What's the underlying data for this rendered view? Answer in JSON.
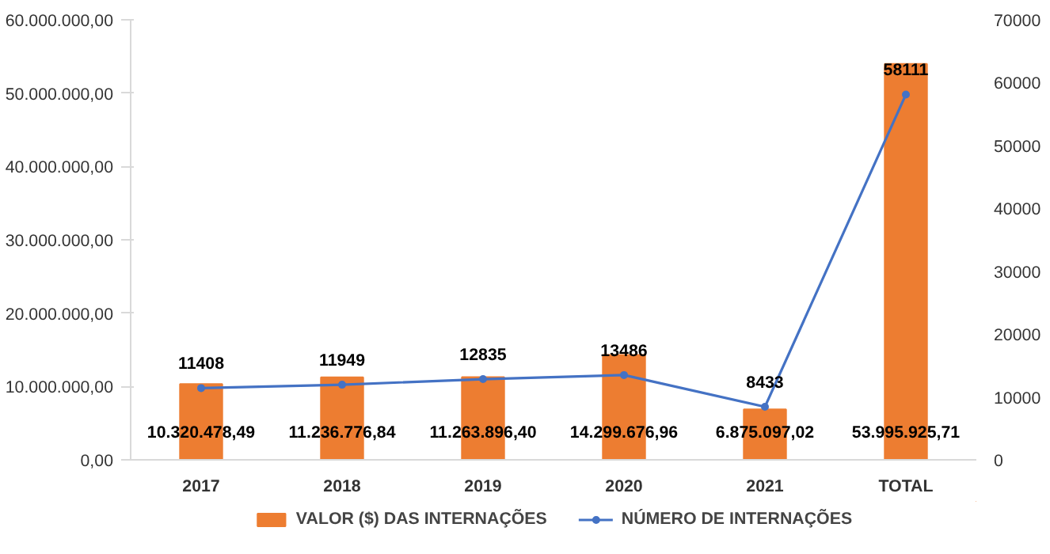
{
  "chart_data": {
    "type": "bar",
    "categories": [
      "2017",
      "2018",
      "2019",
      "2020",
      "2021",
      "TOTAL"
    ],
    "series": [
      {
        "name": "VALOR ($) DAS INTERNAÇÕES",
        "color": "#ed7d31",
        "values": [
          10320478.49,
          11236776.84,
          11263896.4,
          14299676.96,
          6875097.02,
          53995925.71
        ],
        "value_labels": [
          "10.320.478,49",
          "11.236.776,84",
          "11.263.896,40",
          "14.299.676,96",
          "6.875.097,02",
          "53.995.925,71"
        ]
      },
      {
        "name": "NÚMERO DE INTERNAÇÕES",
        "type": "line",
        "axis": "y2",
        "color": "#4472c4",
        "marker": "circle",
        "values": [
          11408,
          11949,
          12835,
          13486,
          8433,
          58111
        ],
        "value_labels": [
          "11408",
          "11949",
          "12835",
          "13486",
          "8433",
          "58111"
        ]
      }
    ],
    "ylim": [
      0,
      60000000
    ],
    "yticks": [
      {
        "value": 0,
        "label": "0,00"
      },
      {
        "value": 10000000,
        "label": "10.000.000,00"
      },
      {
        "value": 20000000,
        "label": "20.000.000,00"
      },
      {
        "value": 30000000,
        "label": "30.000.000,00"
      },
      {
        "value": 40000000,
        "label": "40.000.000,00"
      },
      {
        "value": 50000000,
        "label": "50.000.000,00"
      },
      {
        "value": 60000000,
        "label": "60.000.000,00"
      }
    ],
    "y2lim": [
      0,
      70000
    ],
    "y2ticks": [
      0,
      10000,
      20000,
      30000,
      40000,
      50000,
      60000,
      70000
    ],
    "grid": false,
    "legend": "bottom"
  }
}
